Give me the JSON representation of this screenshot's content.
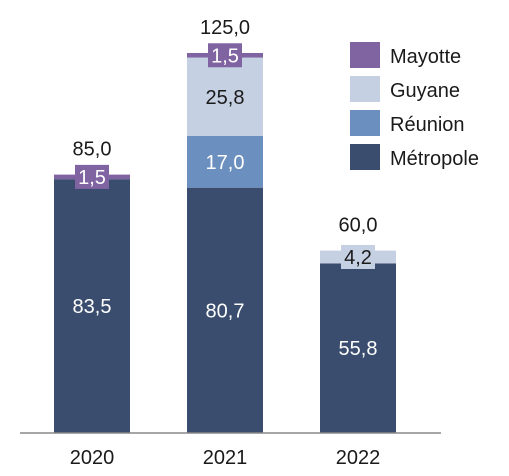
{
  "chart_data": {
    "type": "bar",
    "stacked": true,
    "title": "",
    "xlabel": "",
    "ylabel": "",
    "categories": [
      "2020",
      "2021",
      "2022"
    ],
    "ylim": [
      0,
      125
    ],
    "grid": false,
    "legend_position": "top-right",
    "series": [
      {
        "name": "Métropole",
        "color": "#3a4d6e",
        "values": [
          83.5,
          80.7,
          55.8
        ],
        "labels": [
          "83,5",
          "80,7",
          "55,8"
        ],
        "label_color": "#ffffff"
      },
      {
        "name": "Réunion",
        "color": "#6b8fbe",
        "values": [
          0,
          17.0,
          0
        ],
        "labels": [
          "",
          "17,0",
          ""
        ],
        "label_color": "#ffffff"
      },
      {
        "name": "Guyane",
        "color": "#c5d0e3",
        "values": [
          0,
          25.8,
          4.2
        ],
        "labels": [
          "",
          "25,8",
          "4,2"
        ],
        "label_color": "#1a1a1a"
      },
      {
        "name": "Mayotte",
        "color": "#8064a2",
        "values": [
          1.5,
          1.5,
          0
        ],
        "labels": [
          "1,5",
          "1,5",
          ""
        ],
        "label_color": "#ffffff"
      }
    ],
    "totals": [
      "85,0",
      "125,0",
      "60,0"
    ],
    "legend_order": [
      "Mayotte",
      "Guyane",
      "Réunion",
      "Métropole"
    ]
  }
}
